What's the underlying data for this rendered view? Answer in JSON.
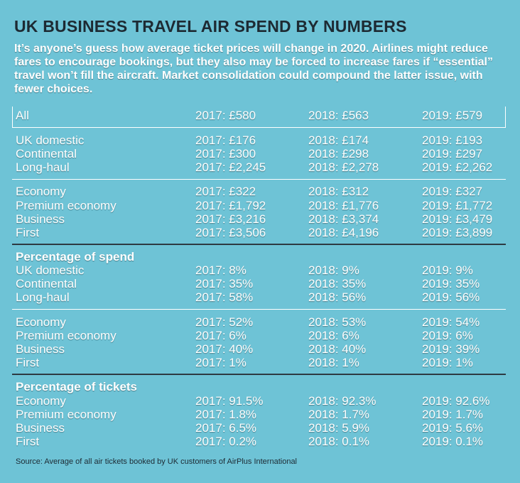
{
  "title": "UK BUSINESS TRAVEL AIR SPEND BY NUMBERS",
  "intro": "It’s anyone’s guess how average ticket prices will change in 2020. Airlines might reduce fares to encourage bookings, but they also may be forced to increase fares if “essential” travel won’t fill the aircraft. Market consolidation could compound the latter issue, with fewer choices.",
  "groups": {
    "all": [
      {
        "label": "All",
        "y2017": "2017: £580",
        "y2018": "2018: £563",
        "y2019": "2019: £579"
      }
    ],
    "region_fares": [
      {
        "label": "UK domestic",
        "y2017": "2017: £176",
        "y2018": "2018: £174",
        "y2019": "2019: £193"
      },
      {
        "label": "Continental",
        "y2017": "2017: £300",
        "y2018": "2018: £298",
        "y2019": "2019: £297"
      },
      {
        "label": "Long-haul",
        "y2017": "2017: £2,245",
        "y2018": "2018: £2,278",
        "y2019": "2019: £2,262"
      }
    ],
    "class_fares": [
      {
        "label": "Economy",
        "y2017": "2017: £322",
        "y2018": "2018: £312",
        "y2019": "2019: £327"
      },
      {
        "label": "Premium economy",
        "y2017": "2017: £1,792",
        "y2018": "2018: £1,776",
        "y2019": "2019: £1,772"
      },
      {
        "label": "Business",
        "y2017": "2017: £3,216",
        "y2018": "2018: £3,374",
        "y2019": "2019: £3,479"
      },
      {
        "label": "First",
        "y2017": "2017: £3,506",
        "y2018": "2018: £4,196",
        "y2019": "2019: £3,899"
      }
    ],
    "spend_heading": "Percentage of spend",
    "spend_region": [
      {
        "label": "UK domestic",
        "y2017": "2017: 8%",
        "y2018": "2018: 9%",
        "y2019": "2019: 9%"
      },
      {
        "label": "Continental",
        "y2017": "2017: 35%",
        "y2018": "2018: 35%",
        "y2019": "2019: 35%"
      },
      {
        "label": "Long-haul",
        "y2017": "2017: 58%",
        "y2018": "2018: 56%",
        "y2019": "2019: 56%"
      }
    ],
    "spend_class": [
      {
        "label": "Economy",
        "y2017": "2017: 52%",
        "y2018": "2018: 53%",
        "y2019": "2019: 54%"
      },
      {
        "label": "Premium economy",
        "y2017": "2017: 6%",
        "y2018": "2018: 6%",
        "y2019": "2019: 6%"
      },
      {
        "label": "Business",
        "y2017": "2017: 40%",
        "y2018": "2018: 40%",
        "y2019": "2019: 39%"
      },
      {
        "label": "First",
        "y2017": "2017: 1%",
        "y2018": "2018: 1%",
        "y2019": "2019: 1%"
      }
    ],
    "tickets_heading": "Percentage of tickets",
    "tickets_class": [
      {
        "label": "Economy",
        "y2017": "2017: 91.5%",
        "y2018": "2018: 92.3%",
        "y2019": "2019: 92.6%"
      },
      {
        "label": "Premium economy",
        "y2017": "2017: 1.8%",
        "y2018": "2018: 1.7%",
        "y2019": "2019: 1.7%"
      },
      {
        "label": "Business",
        "y2017": "2017: 6.5%",
        "y2018": "2018: 5.9%",
        "y2019": "2019: 5.6%"
      },
      {
        "label": "First",
        "y2017": "2017: 0.2%",
        "y2018": "2018: 0.1%",
        "y2019": "2019: 0.1%"
      }
    ]
  },
  "source": "Source: Average of all air tickets booked by UK customers of AirPlus International",
  "colors": {
    "background": "#6ec3d6",
    "title": "#1d2a33",
    "text": "#ffffff",
    "divider_dark": "#2d3a42"
  }
}
